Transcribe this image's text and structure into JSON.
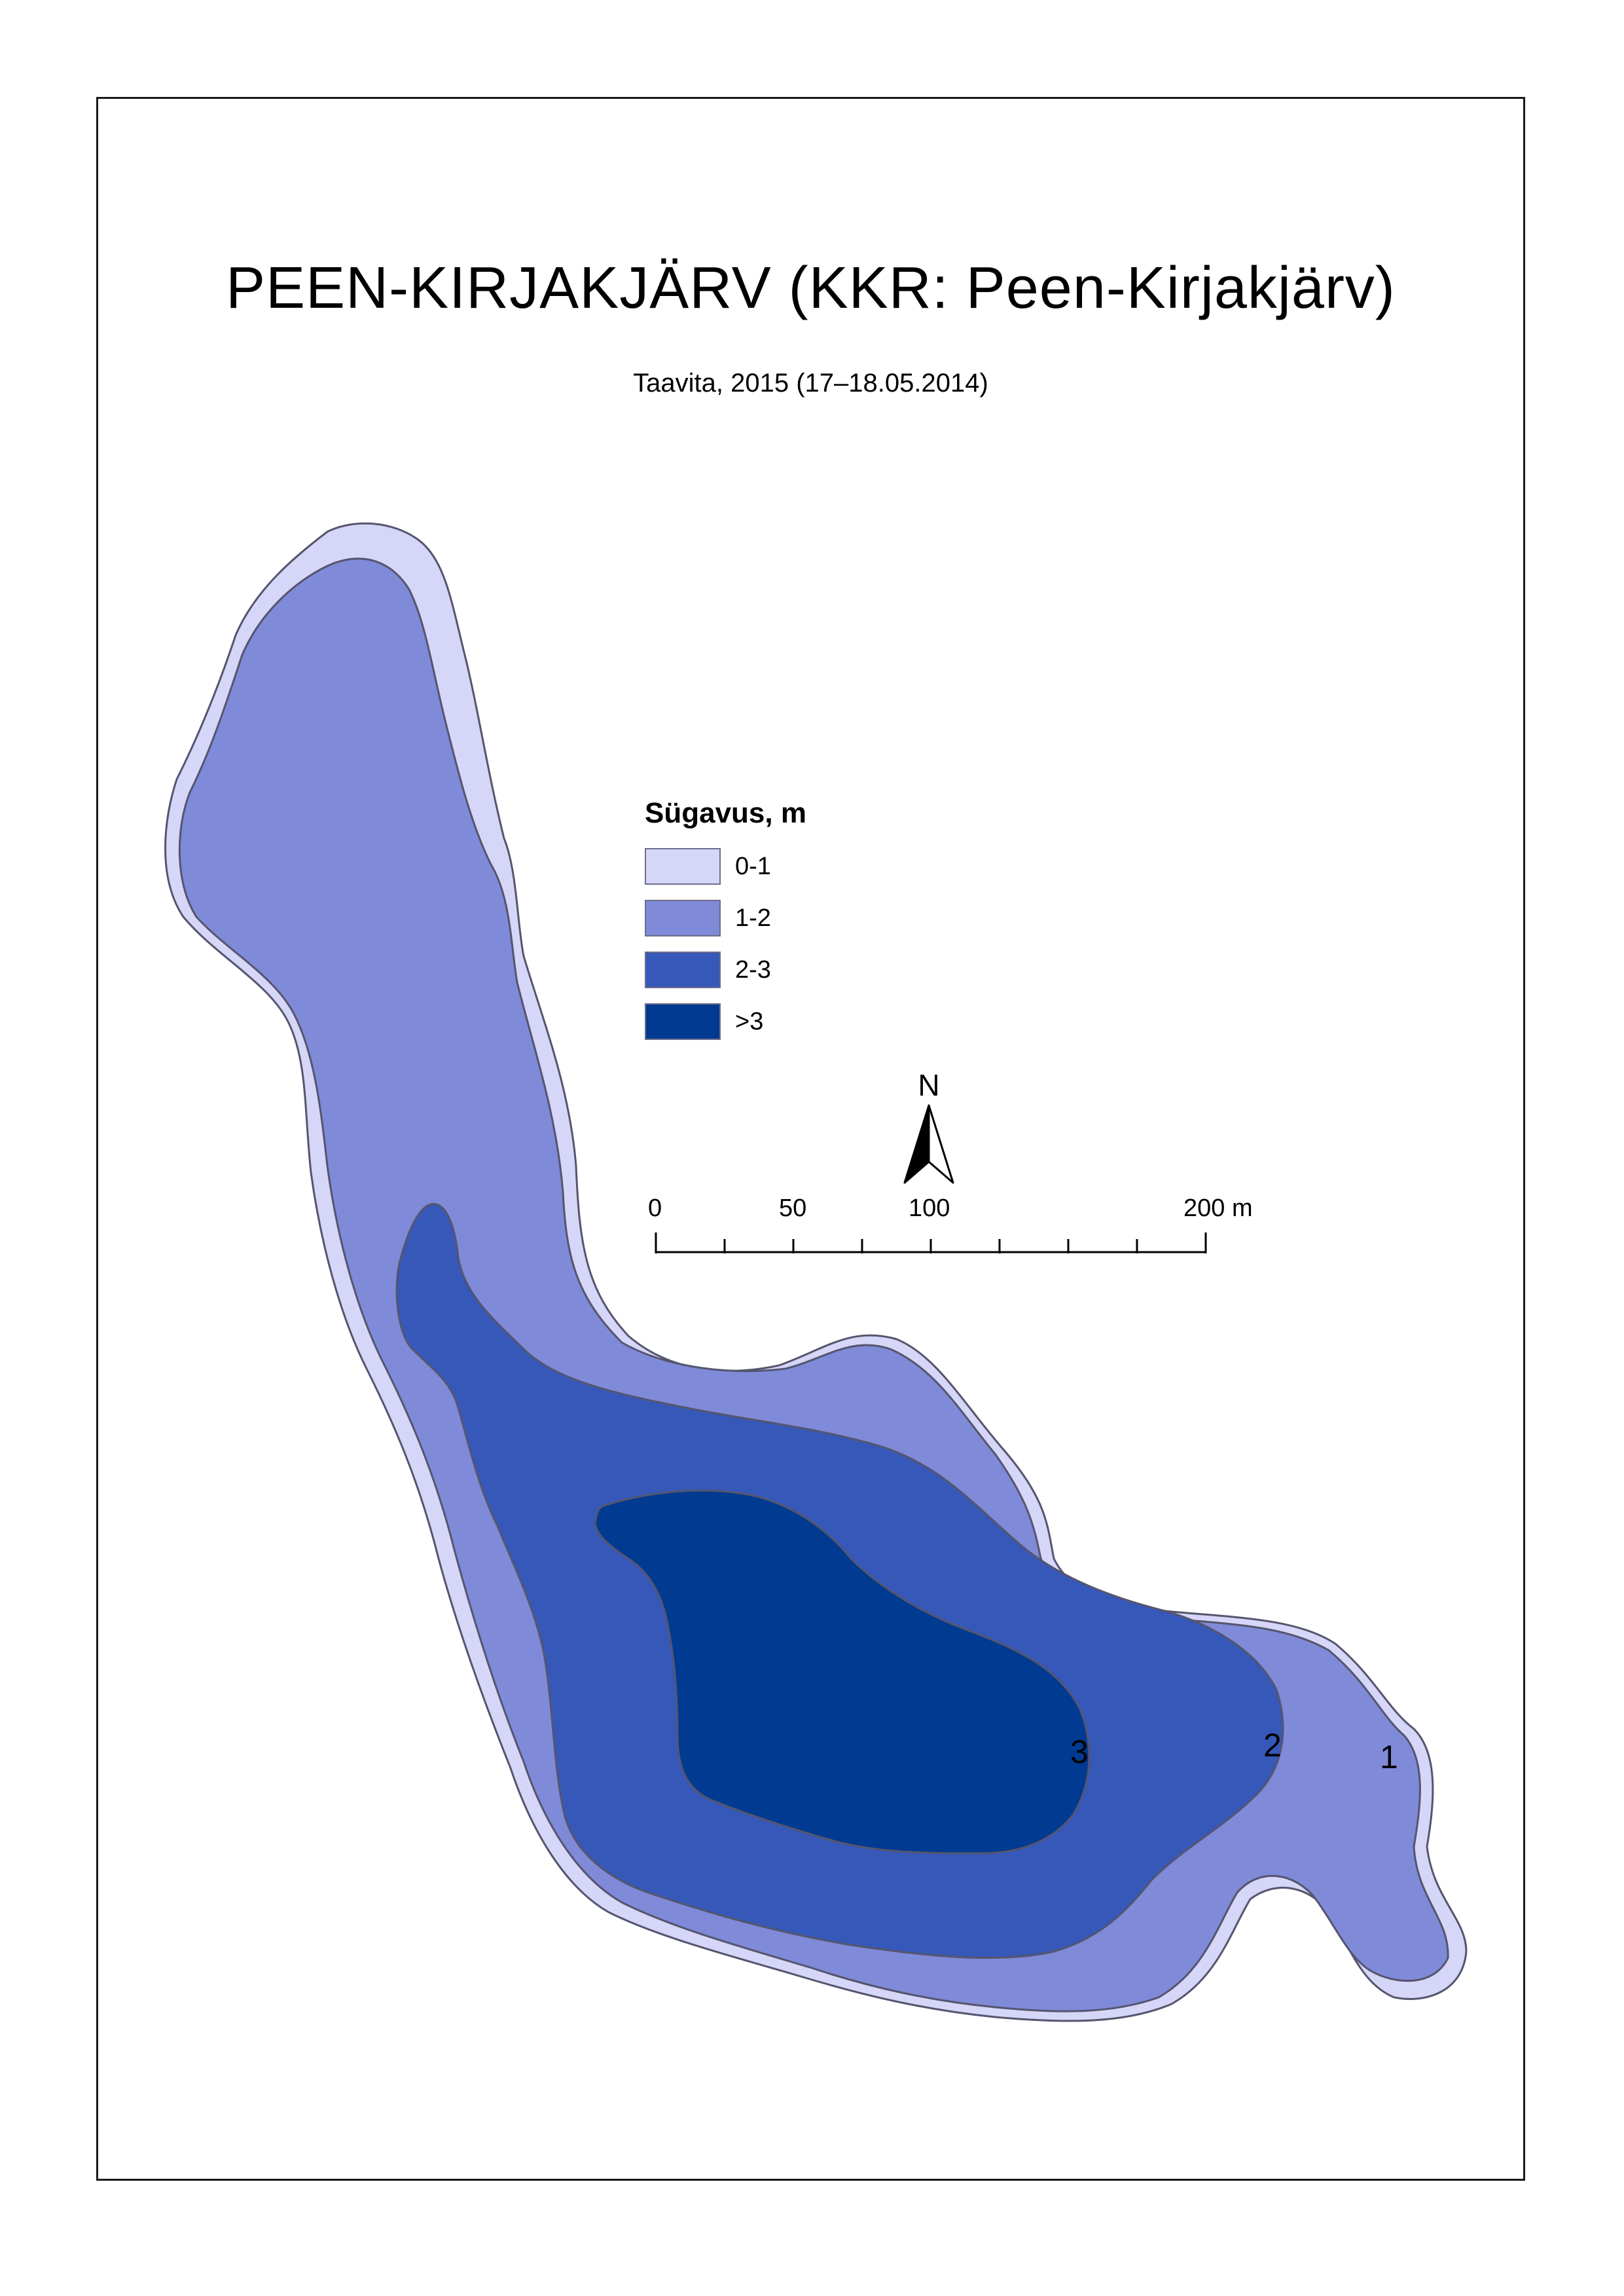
{
  "title": "PEEN-KIRJAKJÄRV (KKR: Peen-Kirjakjärv)",
  "subtitle": "Taavita, 2015 (17–18.05.2014)",
  "legend": {
    "title": "Sügavus, m",
    "items": [
      {
        "label": "0-1",
        "color": "#d6d6f8"
      },
      {
        "label": "1-2",
        "color": "#7f8ad9"
      },
      {
        "label": "2-3",
        "color": "#3558b9"
      },
      {
        "label": ">3",
        "color": "#003a91"
      }
    ]
  },
  "north_label": "N",
  "scale_bar": {
    "labels": [
      "0",
      "50",
      "100",
      "200 m"
    ]
  },
  "contour_labels": [
    "1",
    "2",
    "3"
  ],
  "colors": {
    "outline": "#55556e",
    "frame": "#1a1a1a"
  }
}
